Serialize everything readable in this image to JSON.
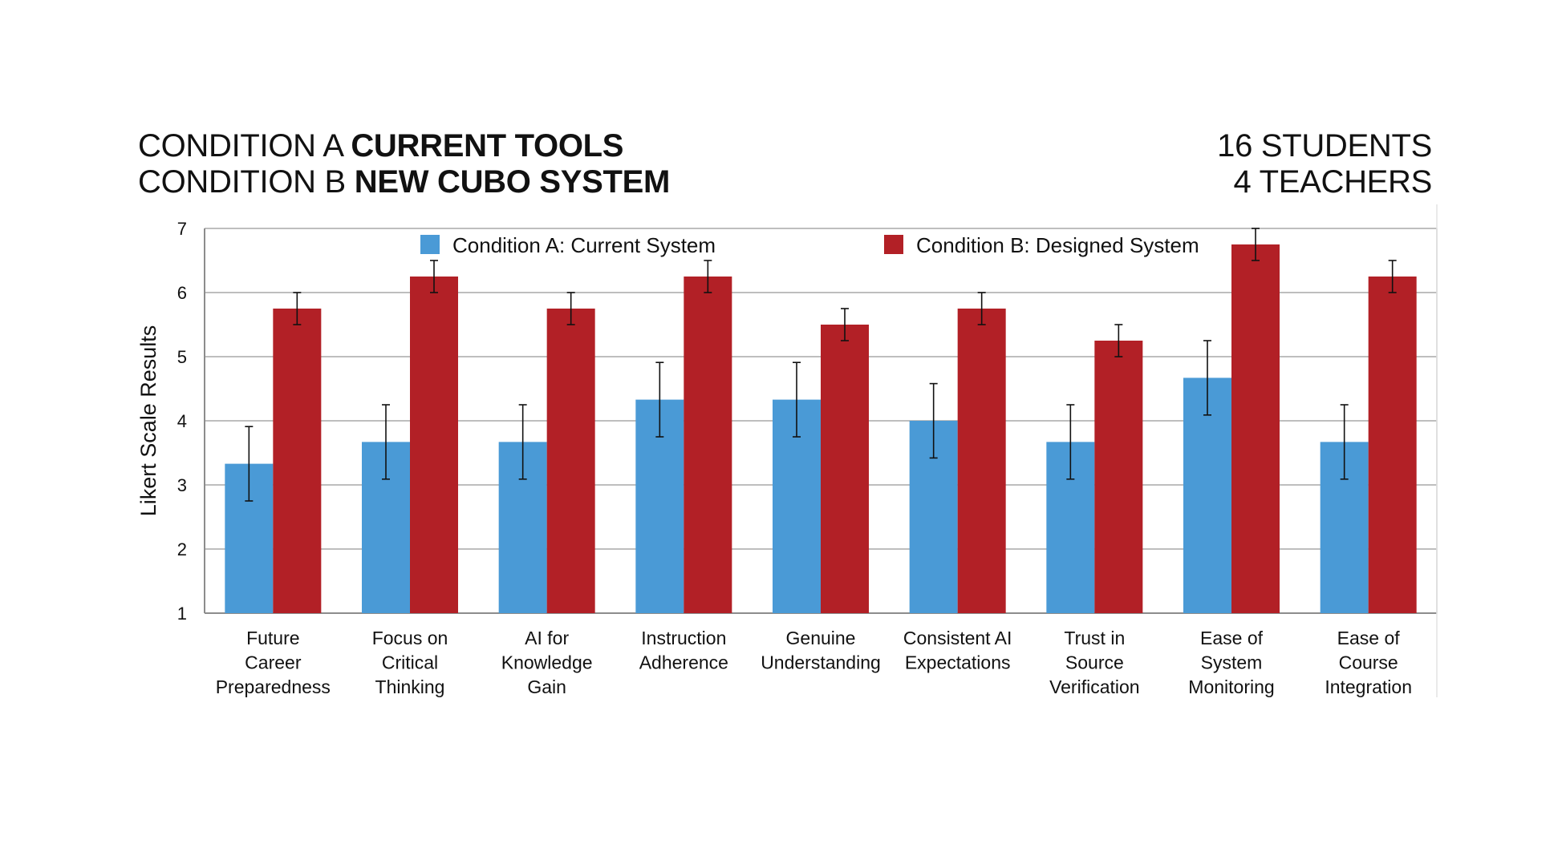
{
  "header": {
    "line1_prefix": "CONDITION A",
    "line1_bold": "CURRENT TOOLS",
    "line2_prefix": "CONDITION B",
    "line2_bold": "NEW CUBO SYSTEM",
    "participants_students": "16 STUDENTS",
    "participants_teachers": "4 TEACHERS"
  },
  "chart_data": {
    "type": "bar",
    "title": "",
    "xlabel": "",
    "ylabel": "Likert Scale Results",
    "ylim": [
      1,
      7
    ],
    "yticks": [
      1,
      2,
      3,
      4,
      5,
      6,
      7
    ],
    "grid": true,
    "legend_position": "top",
    "categories": [
      [
        "Future",
        "Career",
        "Preparedness"
      ],
      [
        "Focus on",
        "Critical",
        "Thinking"
      ],
      [
        "AI for",
        "Knowledge",
        "Gain"
      ],
      [
        "Instruction",
        "Adherence"
      ],
      [
        "Genuine",
        "Understanding"
      ],
      [
        "Consistent AI",
        "Expectations"
      ],
      [
        "Trust in",
        "Source",
        "Verification"
      ],
      [
        "Ease of",
        "System",
        "Monitoring"
      ],
      [
        "Ease of",
        "Course",
        "Integration"
      ]
    ],
    "series": [
      {
        "name": "Condition A: Current System",
        "color": "#4a9ad6",
        "values": [
          3.33,
          3.67,
          3.67,
          4.33,
          4.33,
          4.0,
          3.67,
          4.67,
          3.67
        ],
        "error": [
          0.58,
          0.58,
          0.58,
          0.58,
          0.58,
          0.58,
          0.58,
          0.58,
          0.58
        ]
      },
      {
        "name": "Condition B: Designed System",
        "color": "#b22026",
        "values": [
          5.75,
          6.25,
          5.75,
          6.25,
          5.5,
          5.75,
          5.25,
          6.75,
          6.25
        ],
        "error": [
          0.25,
          0.25,
          0.25,
          0.25,
          0.25,
          0.25,
          0.25,
          0.25,
          0.25
        ]
      }
    ]
  }
}
